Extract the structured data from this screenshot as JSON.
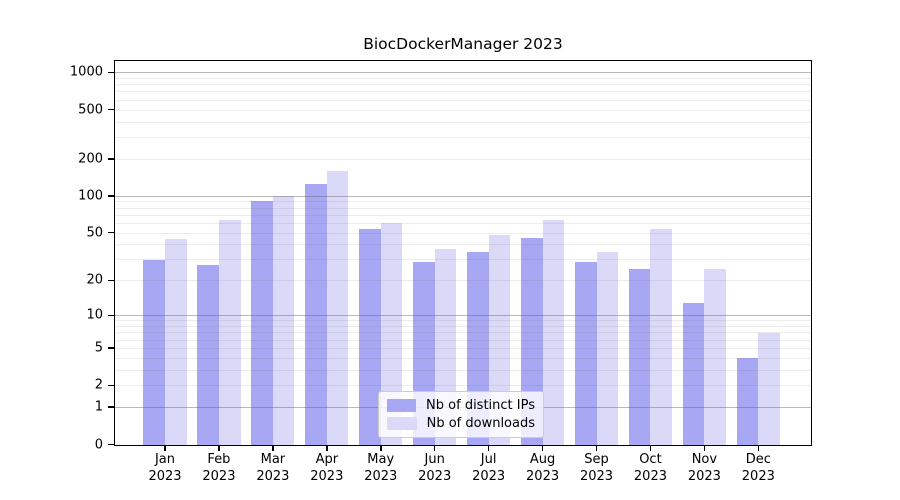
{
  "figure": {
    "title": "BiocDockerManager 2023"
  },
  "chart_data": {
    "type": "bar",
    "title": "BiocDockerManager 2023",
    "categories": [
      "Jan",
      "Feb",
      "Mar",
      "Apr",
      "May",
      "Jun",
      "Jul",
      "Aug",
      "Sep",
      "Oct",
      "Nov",
      "Dec"
    ],
    "x_tick_year": "2023",
    "series": [
      {
        "name": "Nb of distinct IPs",
        "color": "#a7a7f3",
        "values": [
          30,
          27,
          92,
          127,
          54,
          29,
          35,
          46,
          29,
          25,
          13,
          4
        ]
      },
      {
        "name": "Nb of downloads",
        "color": "#dadaf8",
        "values": [
          45,
          64,
          100,
          160,
          61,
          37,
          48,
          64,
          35,
          54,
          25,
          7
        ]
      }
    ],
    "xlabel": "",
    "ylabel": "",
    "yscale": "log1p",
    "yticks": [
      1000,
      500,
      200,
      100,
      50,
      20,
      10,
      5,
      2,
      1,
      0
    ],
    "ylim": [
      0,
      1234
    ],
    "grid": {
      "major_lines": [
        1,
        10,
        100,
        1000
      ],
      "minor_multiples_per_decade": [
        2,
        3,
        4,
        5,
        6,
        7,
        8,
        9
      ],
      "drawn_above_bars": true
    },
    "legend": {
      "position": "bottom-center"
    }
  }
}
